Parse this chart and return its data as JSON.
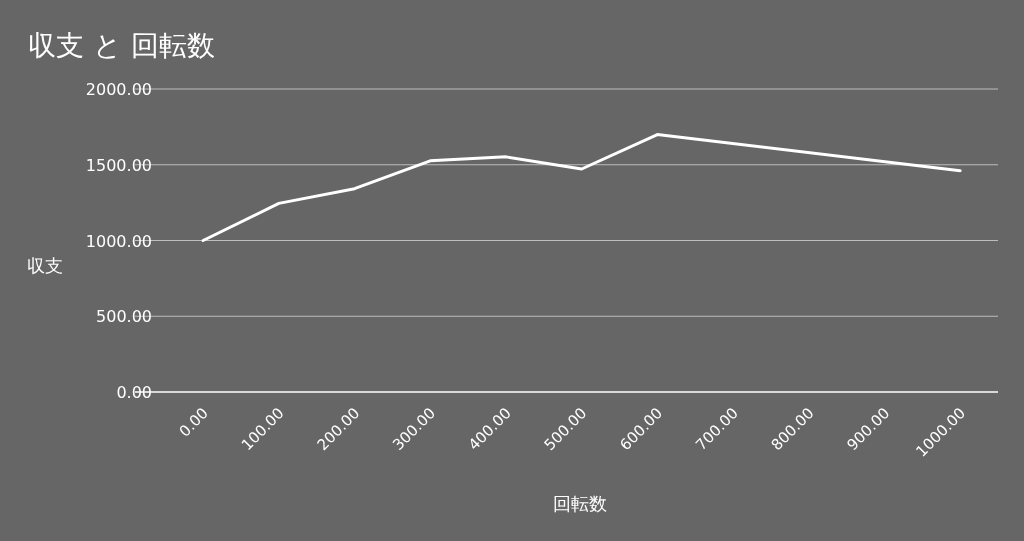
{
  "chart_data": {
    "type": "line",
    "title": "収支 と 回転数",
    "xlabel": "回転数",
    "ylabel": "収支",
    "x": [
      0,
      100,
      200,
      300,
      400,
      500,
      600,
      1000
    ],
    "series": [
      {
        "color": "#ffffff",
        "values": [
          1000,
          1245,
          1342,
          1526,
          1552,
          1472,
          1699,
          1461
        ]
      }
    ],
    "xlim": [
      -90,
      1050
    ],
    "xticks": [
      {
        "value": 0,
        "label": "0.00"
      },
      {
        "value": 100,
        "label": "100.00"
      },
      {
        "value": 200,
        "label": "200.00"
      },
      {
        "value": 300,
        "label": "300.00"
      },
      {
        "value": 400,
        "label": "400.00"
      },
      {
        "value": 500,
        "label": "500.00"
      },
      {
        "value": 600,
        "label": "600.00"
      },
      {
        "value": 700,
        "label": "700.00"
      },
      {
        "value": 800,
        "label": "800.00"
      },
      {
        "value": 900,
        "label": "900.00"
      },
      {
        "value": 1000,
        "label": "1000.00"
      }
    ],
    "ylim": [
      0,
      2000
    ],
    "yticks": [
      {
        "value": 0,
        "label": "0.00"
      },
      {
        "value": 500,
        "label": "500.00"
      },
      {
        "value": 1000,
        "label": "1000.00"
      },
      {
        "value": 1500,
        "label": "1500.00"
      },
      {
        "value": 2000,
        "label": "2000.00"
      }
    ],
    "grid": "y"
  }
}
